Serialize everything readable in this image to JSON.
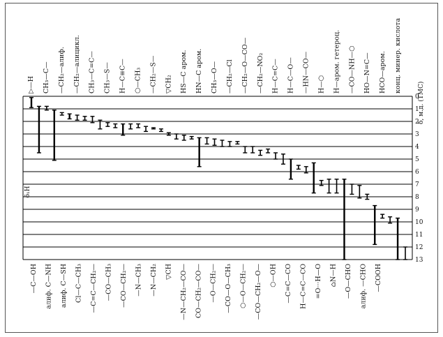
{
  "chart_data": {
    "type": "range",
    "title": "",
    "axis_title": "δ, м.д. (ТМС)",
    "side_label": "δ₁H",
    "scale": [
      0,
      1,
      2,
      3,
      4,
      5,
      6,
      7,
      8,
      9,
      10,
      11,
      12,
      13
    ],
    "ylim": [
      0,
      13
    ],
    "top_labels": [
      "▷—H",
      "CH₃—C—",
      "—CH₂—алиф.",
      "—CH₂—алицикл.",
      "CH₃—C=C—",
      "CH₃—S—",
      "H—C≡C—",
      "⬡—CH₃",
      "—CH₂—S—",
      "▽CH₂",
      "HS—C аром.",
      "HN—C аром.",
      "CH₃—O—",
      "—CH₂—Cl",
      "—CH₂—O—CO—",
      "—CH₂—NO₂",
      "H—C=C—",
      "H—C—O—",
      "—HN—CO—",
      "H—⬡",
      "H—аром. гетероц.",
      "—CO—NH—⬡",
      "HO—N=C—",
      "HCO—аром.",
      "конц. минер. кислота"
    ],
    "bottom_labels": [
      "—C—OH",
      "алиф. C—NH",
      "алиф. C—SH",
      "Cl—C—CH₃",
      "—C=C—CH₂—",
      "—CO—CH₃",
      "—CO—CH₂—",
      "—N—CH₃",
      "—N—CH₂",
      "▽CH",
      "—N—CH₂—CO—",
      "CO—CH₂—CO—",
      "—O—CH₂—",
      "—CO—O—CH₃",
      "⬡—O—CH₂—",
      "—CO—CH₂—O—",
      "⬡—OH",
      "—C=C—CO",
      "H—C=C—CO",
      "=O···H—O",
      "⌂N—H",
      "—O—CHO",
      "алиф. —CHO",
      "—COOH"
    ],
    "series": [
      {
        "values": [
          0.1,
          0.9
        ],
        "thick": true
      },
      {
        "values": [
          0.8,
          4.5
        ],
        "thick": true
      },
      {
        "values": [
          0.8,
          1.1
        ]
      },
      {
        "values": [
          1.1,
          5.1
        ],
        "thick": true
      },
      {
        "values": [
          1.3,
          1.5
        ]
      },
      {
        "values": [
          1.4,
          1.8
        ],
        "thick": true
      },
      {
        "values": [
          1.5,
          1.9
        ]
      },
      {
        "values": [
          1.6,
          1.9
        ]
      },
      {
        "values": [
          1.6,
          2.1
        ]
      },
      {
        "values": [
          1.9,
          2.6
        ]
      },
      {
        "values": [
          2.1,
          2.4
        ]
      },
      {
        "values": [
          2.2,
          2.5
        ]
      },
      {
        "values": [
          2.2,
          3.1
        ],
        "thick": true
      },
      {
        "values": [
          2.2,
          2.6
        ]
      },
      {
        "values": [
          2.2,
          2.5
        ]
      },
      {
        "values": [
          2.4,
          2.8
        ]
      },
      {
        "values": [
          2.5,
          2.6
        ]
      },
      {
        "values": [
          2.6,
          2.8
        ]
      },
      {
        "values": [
          2.9,
          3.1
        ]
      },
      {
        "values": [
          3.0,
          3.4
        ]
      },
      {
        "values": [
          3.1,
          3.5
        ]
      },
      {
        "values": [
          3.2,
          3.4
        ]
      },
      {
        "values": [
          3.3,
          5.6
        ],
        "thick": true
      },
      {
        "values": [
          3.3,
          3.8
        ]
      },
      {
        "values": [
          3.4,
          3.9
        ]
      },
      {
        "values": [
          3.5,
          4.0
        ]
      },
      {
        "values": [
          3.6,
          4.0
        ]
      },
      {
        "values": [
          3.6,
          3.8
        ]
      },
      {
        "values": [
          4.0,
          4.5
        ]
      },
      {
        "values": [
          4.0,
          4.5
        ]
      },
      {
        "values": [
          4.3,
          4.7
        ]
      },
      {
        "values": [
          4.2,
          4.5
        ]
      },
      {
        "values": [
          4.5,
          5.0
        ]
      },
      {
        "values": [
          4.6,
          5.4
        ]
      },
      {
        "values": [
          5.0,
          6.6
        ],
        "thick": true
      },
      {
        "values": [
          5.5,
          5.8
        ]
      },
      {
        "values": [
          5.6,
          6.1
        ]
      },
      {
        "values": [
          5.3,
          7.7
        ],
        "thick": true
      },
      {
        "values": [
          6.7,
          7.1
        ]
      },
      {
        "values": [
          6.6,
          7.7
        ]
      },
      {
        "values": [
          6.6,
          7.7
        ]
      },
      {
        "values": [
          6.6,
          13.0
        ],
        "thick": true
      },
      {
        "values": [
          7.0,
          7.8
        ]
      },
      {
        "values": [
          7.1,
          8.1
        ]
      },
      {
        "values": [
          7.8,
          8.2
        ]
      },
      {
        "values": [
          8.7,
          11.8
        ],
        "thick": true
      },
      {
        "values": [
          9.4,
          9.7
        ]
      },
      {
        "values": [
          9.6,
          10.1
        ]
      },
      {
        "values": [
          9.7,
          13.0
        ],
        "thick": true
      },
      {
        "values": [
          12.0,
          13.0
        ]
      }
    ]
  }
}
